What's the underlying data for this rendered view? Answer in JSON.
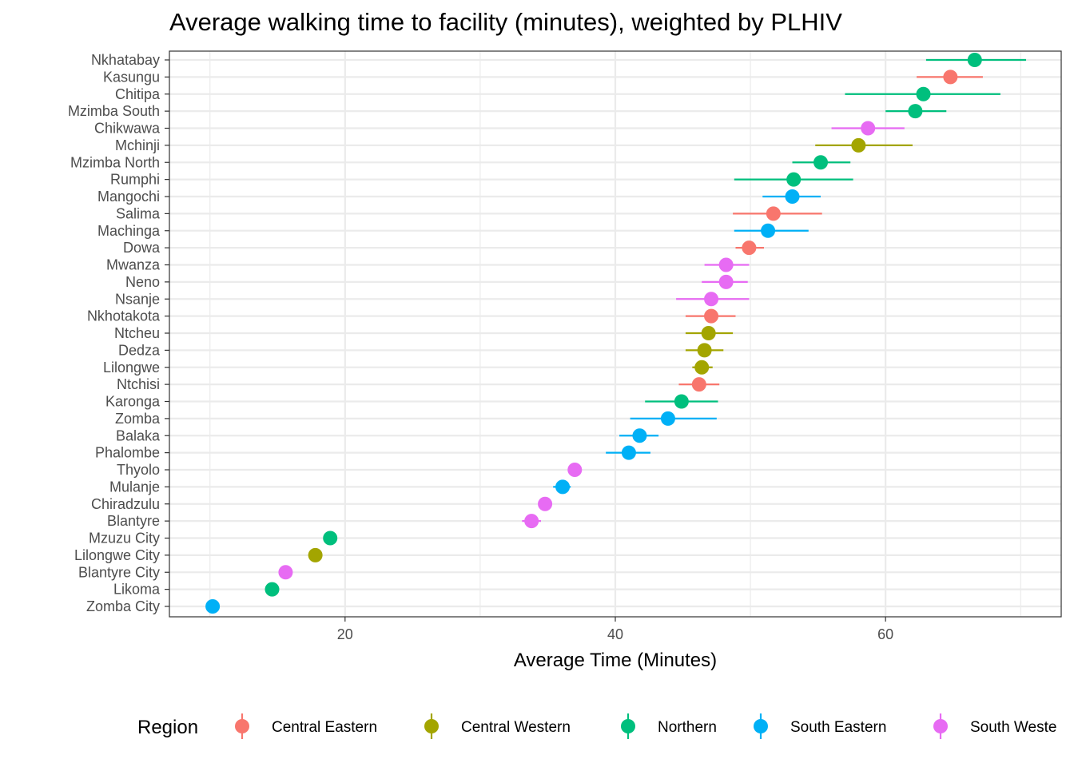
{
  "chart_data": {
    "type": "scatter",
    "title": "Average walking time to facility (minutes), weighted by PLHIV",
    "xlabel": "Average Time (Minutes)",
    "ylabel": "",
    "xlim": [
      7,
      73
    ],
    "x_ticks": [
      20,
      40,
      60
    ],
    "grid": true,
    "legend": {
      "title": "Region",
      "position": "bottom",
      "entries": [
        {
          "name": "Central Eastern",
          "color": "#F8766D"
        },
        {
          "name": "Central Western",
          "color": "#A3A500"
        },
        {
          "name": "Northern",
          "color": "#00BF7D"
        },
        {
          "name": "South Eastern",
          "color": "#00B0F6"
        },
        {
          "name": "South Weste",
          "color": "#E76BF3"
        }
      ]
    },
    "points": [
      {
        "district": "Nkhatabay",
        "region": "Northern",
        "x": 66.6,
        "lo": 63.0,
        "hi": 70.4
      },
      {
        "district": "Kasungu",
        "region": "Central Eastern",
        "x": 64.8,
        "lo": 62.3,
        "hi": 67.2
      },
      {
        "district": "Chitipa",
        "region": "Northern",
        "x": 62.8,
        "lo": 57.0,
        "hi": 68.5
      },
      {
        "district": "Mzimba South",
        "region": "Northern",
        "x": 62.2,
        "lo": 60.0,
        "hi": 64.5
      },
      {
        "district": "Chikwawa",
        "region": "South Weste",
        "x": 58.7,
        "lo": 56.0,
        "hi": 61.4
      },
      {
        "district": "Mchinji",
        "region": "Central Western",
        "x": 58.0,
        "lo": 54.8,
        "hi": 62.0
      },
      {
        "district": "Mzimba North",
        "region": "Northern",
        "x": 55.2,
        "lo": 53.1,
        "hi": 57.4
      },
      {
        "district": "Rumphi",
        "region": "Northern",
        "x": 53.2,
        "lo": 48.8,
        "hi": 57.6
      },
      {
        "district": "Mangochi",
        "region": "South Eastern",
        "x": 53.1,
        "lo": 50.9,
        "hi": 55.2
      },
      {
        "district": "Salima",
        "region": "Central Eastern",
        "x": 51.7,
        "lo": 48.7,
        "hi": 55.3
      },
      {
        "district": "Machinga",
        "region": "South Eastern",
        "x": 51.3,
        "lo": 48.8,
        "hi": 54.3
      },
      {
        "district": "Dowa",
        "region": "Central Eastern",
        "x": 49.9,
        "lo": 48.9,
        "hi": 51.0
      },
      {
        "district": "Mwanza",
        "region": "South Weste",
        "x": 48.2,
        "lo": 46.6,
        "hi": 49.9
      },
      {
        "district": "Neno",
        "region": "South Weste",
        "x": 48.2,
        "lo": 46.4,
        "hi": 49.8
      },
      {
        "district": "Nsanje",
        "region": "South Weste",
        "x": 47.1,
        "lo": 44.5,
        "hi": 49.9
      },
      {
        "district": "Nkhotakota",
        "region": "Central Eastern",
        "x": 47.1,
        "lo": 45.2,
        "hi": 48.9
      },
      {
        "district": "Ntcheu",
        "region": "Central Western",
        "x": 46.9,
        "lo": 45.2,
        "hi": 48.7
      },
      {
        "district": "Dedza",
        "region": "Central Western",
        "x": 46.6,
        "lo": 45.2,
        "hi": 48.0
      },
      {
        "district": "Lilongwe",
        "region": "Central Western",
        "x": 46.4,
        "lo": 45.7,
        "hi": 47.2
      },
      {
        "district": "Ntchisi",
        "region": "Central Eastern",
        "x": 46.2,
        "lo": 44.7,
        "hi": 47.7
      },
      {
        "district": "Karonga",
        "region": "Northern",
        "x": 44.9,
        "lo": 42.2,
        "hi": 47.6
      },
      {
        "district": "Zomba",
        "region": "South Eastern",
        "x": 43.9,
        "lo": 41.1,
        "hi": 47.5
      },
      {
        "district": "Balaka",
        "region": "South Eastern",
        "x": 41.8,
        "lo": 40.3,
        "hi": 43.2
      },
      {
        "district": "Phalombe",
        "region": "South Eastern",
        "x": 41.0,
        "lo": 39.3,
        "hi": 42.6
      },
      {
        "district": "Thyolo",
        "region": "South Weste",
        "x": 37.0,
        "lo": 36.7,
        "hi": 37.3
      },
      {
        "district": "Mulanje",
        "region": "South Eastern",
        "x": 36.1,
        "lo": 35.4,
        "hi": 36.7
      },
      {
        "district": "Chiradzulu",
        "region": "South Weste",
        "x": 34.8,
        "lo": 34.5,
        "hi": 35.2
      },
      {
        "district": "Blantyre",
        "region": "South Weste",
        "x": 33.8,
        "lo": 33.1,
        "hi": 34.5
      },
      {
        "district": "Mzuzu City",
        "region": "Northern",
        "x": 18.9,
        "lo": 18.6,
        "hi": 19.2
      },
      {
        "district": "Lilongwe City",
        "region": "Central Western",
        "x": 17.8,
        "lo": 17.5,
        "hi": 18.1
      },
      {
        "district": "Blantyre City",
        "region": "South Weste",
        "x": 15.6,
        "lo": 15.3,
        "hi": 15.9
      },
      {
        "district": "Likoma",
        "region": "Northern",
        "x": 14.6,
        "lo": 14.3,
        "hi": 14.9
      },
      {
        "district": "Zomba City",
        "region": "South Eastern",
        "x": 10.2,
        "lo": 9.9,
        "hi": 10.5
      }
    ]
  }
}
